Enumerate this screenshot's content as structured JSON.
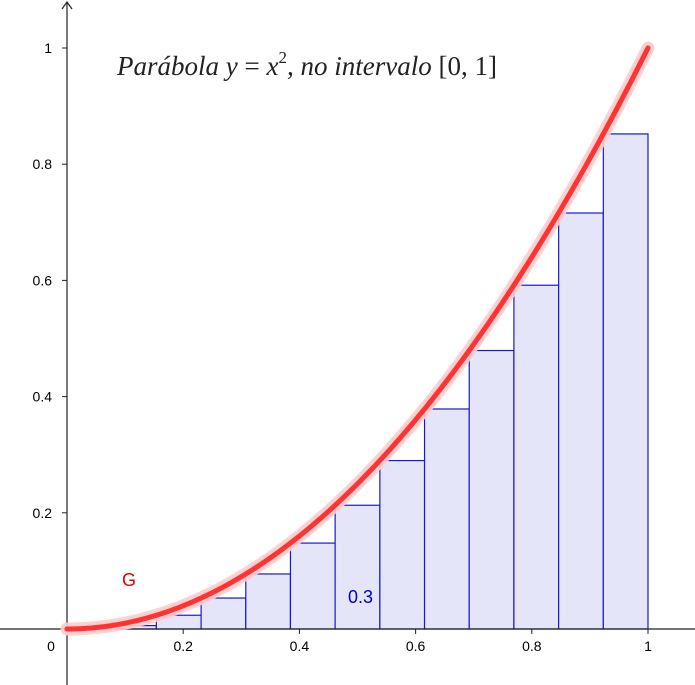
{
  "chart_data": {
    "type": "area",
    "title_parts": {
      "lead": "Parábola ",
      "var_y": "y",
      "eq": " = ",
      "var_x": "x",
      "exp": "2",
      "tail": ",  no intervalo ",
      "interval": "[0, 1]"
    },
    "function_label": "G",
    "value_label": "0.3",
    "xlim": [
      0,
      1
    ],
    "ylim": [
      0,
      1
    ],
    "x_origin_label": "0",
    "x_ticks": [
      {
        "value": 0.2,
        "label": "0.2"
      },
      {
        "value": 0.4,
        "label": "0.4"
      },
      {
        "value": 0.6,
        "label": "0.6"
      },
      {
        "value": 0.8,
        "label": "0.8"
      },
      {
        "value": 1.0,
        "label": "1"
      }
    ],
    "y_ticks": [
      {
        "value": 0.2,
        "label": "0.2"
      },
      {
        "value": 0.4,
        "label": "0.4"
      },
      {
        "value": 0.6,
        "label": "0.6"
      },
      {
        "value": 0.8,
        "label": "0.8"
      },
      {
        "value": 1.0,
        "label": "1"
      }
    ],
    "curve": {
      "expression": "x^2",
      "color": "#ff3333",
      "halo_color": "#ffcccc"
    },
    "rectangles": {
      "fill": "#e5e5fa",
      "stroke": "#1a1acc",
      "bars": [
        {
          "x0": 0.0769,
          "x1": 0.1538,
          "height": 0.0059
        },
        {
          "x0": 0.1538,
          "x1": 0.2308,
          "height": 0.0237
        },
        {
          "x0": 0.2308,
          "x1": 0.3077,
          "height": 0.0533
        },
        {
          "x0": 0.3077,
          "x1": 0.3846,
          "height": 0.0947
        },
        {
          "x0": 0.3846,
          "x1": 0.4615,
          "height": 0.1479
        },
        {
          "x0": 0.4615,
          "x1": 0.5385,
          "height": 0.213
        },
        {
          "x0": 0.5385,
          "x1": 0.6154,
          "height": 0.2899
        },
        {
          "x0": 0.6154,
          "x1": 0.6923,
          "height": 0.3787
        },
        {
          "x0": 0.6923,
          "x1": 0.7692,
          "height": 0.4793
        },
        {
          "x0": 0.7692,
          "x1": 0.8462,
          "height": 0.5917
        },
        {
          "x0": 0.8462,
          "x1": 0.9231,
          "height": 0.716
        },
        {
          "x0": 0.9231,
          "x1": 1.0,
          "height": 0.8521
        }
      ]
    },
    "label_colors": {
      "function": "#dd0000",
      "value": "#0000cc"
    }
  }
}
